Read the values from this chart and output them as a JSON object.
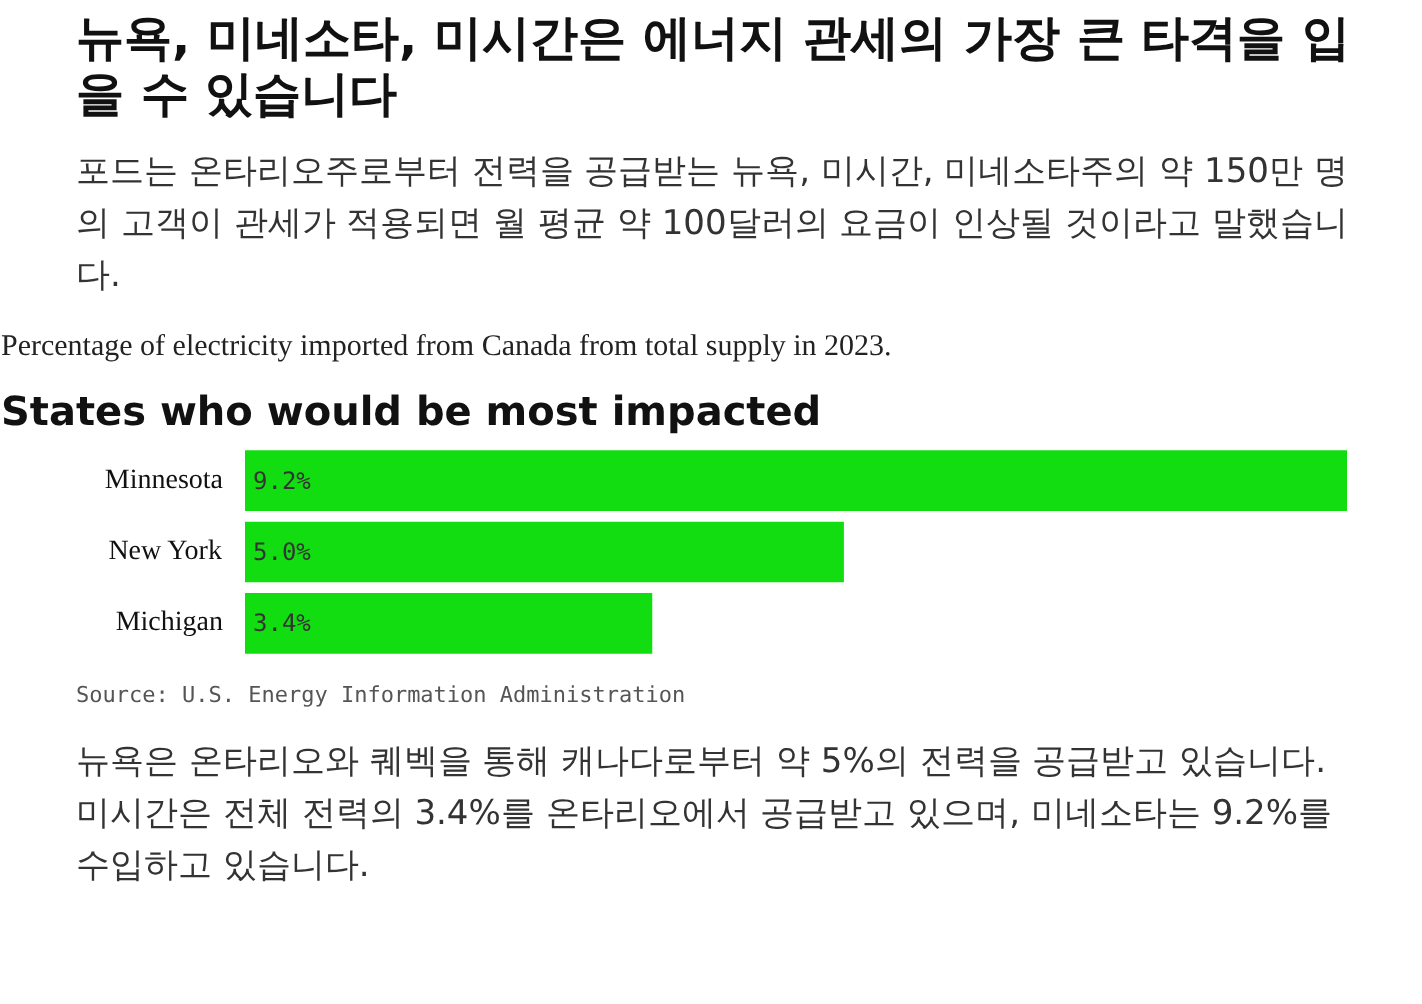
{
  "chart_data": {
    "type": "bar",
    "orientation": "horizontal",
    "title": "States who would be most impacted",
    "subtitle": "Percentage of electricity imported from Canada from total supply in 2023.",
    "categories": [
      "Minnesota",
      "New York",
      "Michigan"
    ],
    "values": [
      9.2,
      5.0,
      3.4
    ],
    "value_labels": [
      "9.2%",
      "5.0%",
      "3.4%"
    ],
    "color": "#11dd11",
    "annotations": [
      "뉴욕, 미네소타, 미시간은 에너지 관세의 가장 큰 타격을 입을 수 있습니다",
      "포드는 온타리오주로부터 전력을 공급받는 뉴욕, 미시간, 미네소타주의 약 150만 명의 고객이 관세가 적용되면 월 평균 약 100달러의 요금이 인상될 것이라고 말했습니다.",
      "Source: U.S. Energy Information Administration",
      "뉴욕은 온타리오와 퀘벡을 통해 캐나다로부터 약 5%의 전력을 공급받고 있습니다. 미시간은 전체 전력의 3.4%를 온타리오에서 공급받고 있으며, 미네소타는 9.2%를 수입하고 있습니다."
    ]
  }
}
